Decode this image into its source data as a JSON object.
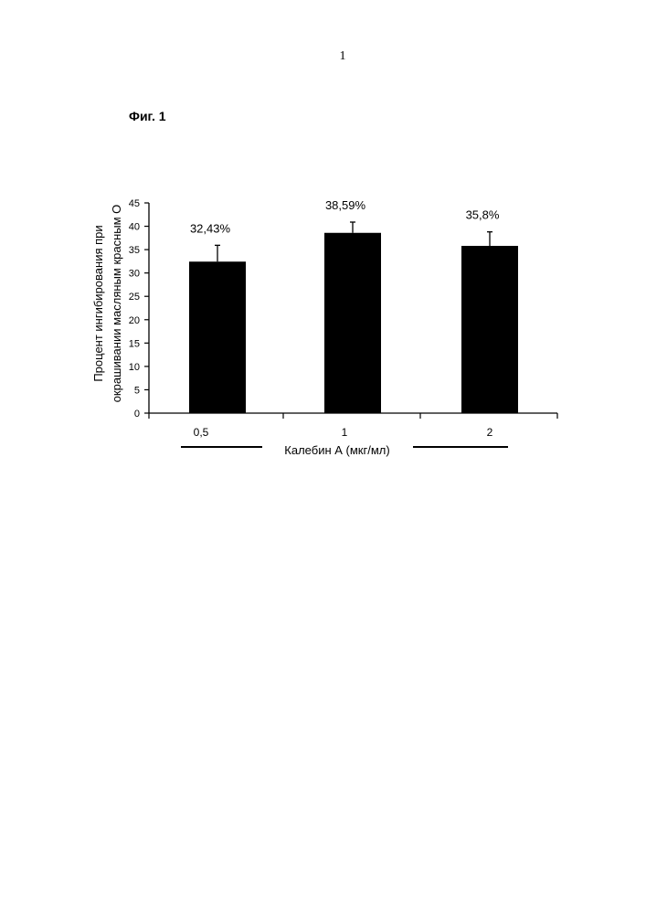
{
  "page_number": "1",
  "figure_label": "Фиг. 1",
  "chart_data": {
    "type": "bar",
    "categories": [
      "0,5",
      "1",
      "2"
    ],
    "values": [
      32.43,
      38.59,
      35.8
    ],
    "errors": [
      3.5,
      2.3,
      3.0
    ],
    "data_labels": [
      "32,43%",
      "38,59%",
      "35,8%"
    ],
    "ylabel_lines": [
      "Процент ингибирования при",
      "окрашивании масляным красным О"
    ],
    "xlabel": "Калебин А (мкг/мл)",
    "ylim": [
      0,
      45
    ],
    "yticks": [
      0,
      5,
      10,
      15,
      20,
      25,
      30,
      35,
      40,
      45
    ],
    "grid": false,
    "legend": "none",
    "bar_color": "#000000"
  }
}
